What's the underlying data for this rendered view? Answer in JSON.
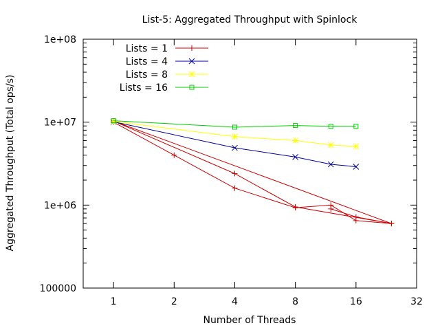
{
  "chart_data": {
    "type": "line",
    "title": "List-5: Aggregated Throughput with Spinlock",
    "xlabel": "Number of Threads",
    "ylabel": "Aggregated Throughput (Total ops/s)",
    "x_scale": "log2",
    "y_scale": "log10",
    "xlim": [
      0.707,
      32
    ],
    "ylim": [
      100000,
      100000000
    ],
    "x_ticks": [
      1,
      2,
      4,
      8,
      16,
      32
    ],
    "x_tick_labels": [
      "1",
      "2",
      "4",
      "8",
      "16",
      "32"
    ],
    "y_ticks": [
      100000,
      1000000,
      10000000,
      100000000
    ],
    "y_tick_labels": [
      "100000",
      "1e+06",
      "1e+07",
      "1e+08"
    ],
    "grid": false,
    "legend_position": "top-left",
    "series": [
      {
        "name": "Lists = 1",
        "color": "#cc0000",
        "marker": "plus",
        "points": [
          [
            1,
            10000000
          ],
          [
            2,
            4000000
          ],
          [
            4,
            1600000
          ],
          [
            8,
            930000
          ],
          [
            12,
            1000000
          ],
          [
            16,
            650000
          ],
          [
            24,
            600000
          ],
          [
            8,
            950000
          ],
          [
            4,
            2400000
          ],
          [
            1,
            10300000
          ],
          [
            24,
            600000
          ],
          [
            16,
            720000
          ],
          [
            12,
            900000
          ]
        ]
      },
      {
        "name": "Lists = 4",
        "color": "#000099",
        "marker": "cross",
        "points": [
          [
            1,
            10100000
          ],
          [
            4,
            4900000
          ],
          [
            8,
            3800000
          ],
          [
            12,
            3100000
          ],
          [
            16,
            2900000
          ]
        ]
      },
      {
        "name": "Lists = 8",
        "color": "#ffff00",
        "marker": "star",
        "points": [
          [
            1,
            10200000
          ],
          [
            4,
            6700000
          ],
          [
            8,
            6000000
          ],
          [
            12,
            5300000
          ],
          [
            16,
            5100000
          ]
        ]
      },
      {
        "name": "Lists = 16",
        "color": "#00cc00",
        "marker": "square",
        "points": [
          [
            1,
            10400000
          ],
          [
            4,
            8700000
          ],
          [
            8,
            9100000
          ],
          [
            12,
            8900000
          ],
          [
            16,
            8900000
          ]
        ]
      }
    ]
  }
}
